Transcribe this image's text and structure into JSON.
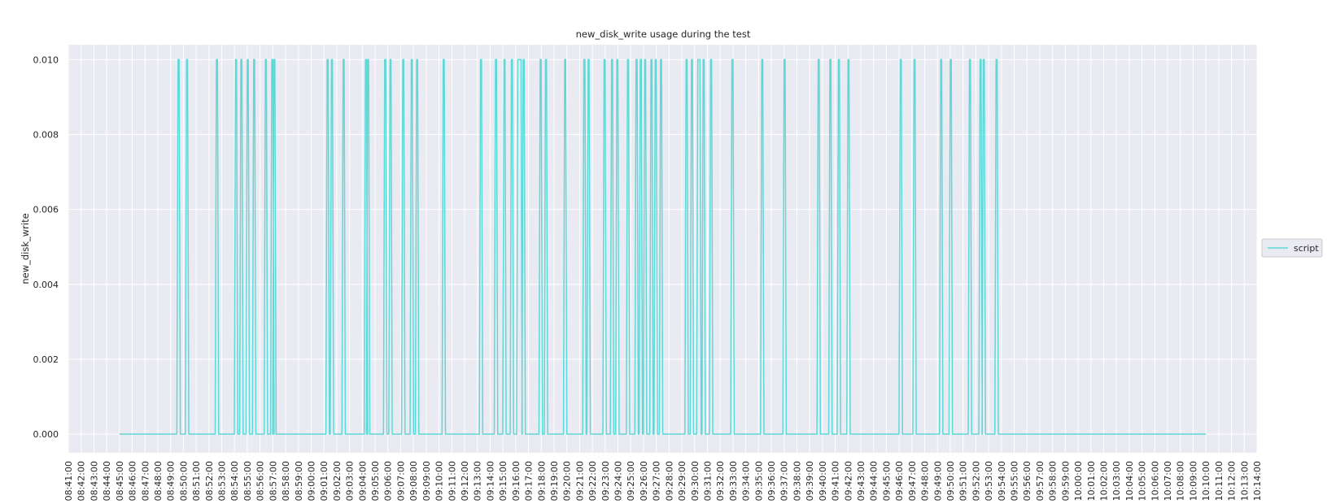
{
  "chart_data": {
    "type": "line",
    "title": "new_disk_write usage during the test",
    "xlabel": "",
    "ylabel": "new_disk_write",
    "xlim": [
      "08:41:00",
      "10:14:00"
    ],
    "ylim": [
      -0.0005,
      0.0104
    ],
    "yticks": [
      "0.000",
      "0.002",
      "0.004",
      "0.006",
      "0.008",
      "0.010"
    ],
    "xticks": [
      "08:41:00",
      "08:42:00",
      "08:43:00",
      "08:44:00",
      "08:45:00",
      "08:46:00",
      "08:47:00",
      "08:48:00",
      "08:49:00",
      "08:50:00",
      "08:51:00",
      "08:52:00",
      "08:53:00",
      "08:54:00",
      "08:55:00",
      "08:56:00",
      "08:57:00",
      "08:58:00",
      "08:59:00",
      "09:00:00",
      "09:01:00",
      "09:02:00",
      "09:03:00",
      "09:04:00",
      "09:05:00",
      "09:06:00",
      "09:07:00",
      "09:08:00",
      "09:09:00",
      "09:10:00",
      "09:11:00",
      "09:12:00",
      "09:13:00",
      "09:14:00",
      "09:15:00",
      "09:16:00",
      "09:17:00",
      "09:18:00",
      "09:19:00",
      "09:20:00",
      "09:21:00",
      "09:22:00",
      "09:23:00",
      "09:24:00",
      "09:25:00",
      "09:26:00",
      "09:27:00",
      "09:28:00",
      "09:29:00",
      "09:30:00",
      "09:31:00",
      "09:32:00",
      "09:33:00",
      "09:34:00",
      "09:35:00",
      "09:36:00",
      "09:37:00",
      "09:38:00",
      "09:39:00",
      "09:40:00",
      "09:41:00",
      "09:42:00",
      "09:43:00",
      "09:44:00",
      "09:45:00",
      "09:46:00",
      "09:47:00",
      "09:48:00",
      "09:49:00",
      "09:50:00",
      "09:51:00",
      "09:52:00",
      "09:53:00",
      "09:54:00",
      "09:55:00",
      "09:56:00",
      "09:57:00",
      "09:58:00",
      "09:59:00",
      "10:00:00",
      "10:01:00",
      "10:02:00",
      "10:03:00",
      "10:04:00",
      "10:05:00",
      "10:06:00",
      "10:07:00",
      "10:08:00",
      "10:09:00",
      "10:10:00",
      "10:11:00",
      "10:12:00",
      "10:13:00",
      "10:14:00"
    ],
    "grid": true,
    "legend_position": "right",
    "background_color": "#eaeaf2",
    "grid_color": "#ffffff",
    "series": [
      {
        "name": "script",
        "color": "#5fd8d8",
        "start": "08:45:00",
        "end": "10:10:00",
        "baseline": 0.0,
        "spike_value": 0.01,
        "spikes": [
          {
            "start": "08:49:35",
            "end": "08:49:40"
          },
          {
            "start": "08:50:15",
            "end": "08:50:15"
          },
          {
            "start": "08:52:35",
            "end": "08:52:40"
          },
          {
            "start": "08:54:05",
            "end": "08:54:05"
          },
          {
            "start": "08:54:30",
            "end": "08:54:30"
          },
          {
            "start": "08:55:00",
            "end": "08:55:00"
          },
          {
            "start": "08:55:30",
            "end": "08:55:30"
          },
          {
            "start": "08:56:25",
            "end": "08:56:25"
          },
          {
            "start": "08:56:55",
            "end": "08:57:00"
          },
          {
            "start": "08:57:05",
            "end": "08:57:05"
          },
          {
            "start": "09:01:15",
            "end": "09:01:15"
          },
          {
            "start": "09:01:35",
            "end": "09:01:35"
          },
          {
            "start": "09:02:30",
            "end": "09:02:30"
          },
          {
            "start": "09:04:15",
            "end": "09:04:15"
          },
          {
            "start": "09:04:25",
            "end": "09:04:25"
          },
          {
            "start": "09:05:45",
            "end": "09:05:50"
          },
          {
            "start": "09:06:10",
            "end": "09:06:10"
          },
          {
            "start": "09:07:10",
            "end": "09:07:10"
          },
          {
            "start": "09:07:50",
            "end": "09:07:55"
          },
          {
            "start": "09:08:15",
            "end": "09:08:15"
          },
          {
            "start": "09:10:20",
            "end": "09:10:20"
          },
          {
            "start": "09:13:15",
            "end": "09:13:15"
          },
          {
            "start": "09:14:25",
            "end": "09:14:30"
          },
          {
            "start": "09:15:05",
            "end": "09:15:05"
          },
          {
            "start": "09:15:40",
            "end": "09:15:40"
          },
          {
            "start": "09:16:10",
            "end": "09:16:25"
          },
          {
            "start": "09:16:35",
            "end": "09:16:35"
          },
          {
            "start": "09:17:55",
            "end": "09:17:55"
          },
          {
            "start": "09:18:20",
            "end": "09:18:20"
          },
          {
            "start": "09:19:50",
            "end": "09:19:50"
          },
          {
            "start": "09:21:20",
            "end": "09:21:25"
          },
          {
            "start": "09:21:40",
            "end": "09:21:40"
          },
          {
            "start": "09:22:55",
            "end": "09:22:55"
          },
          {
            "start": "09:23:30",
            "end": "09:23:30"
          },
          {
            "start": "09:23:55",
            "end": "09:23:55"
          },
          {
            "start": "09:24:45",
            "end": "09:24:45"
          },
          {
            "start": "09:25:25",
            "end": "09:25:30"
          },
          {
            "start": "09:25:45",
            "end": "09:25:45"
          },
          {
            "start": "09:26:05",
            "end": "09:26:05"
          },
          {
            "start": "09:26:35",
            "end": "09:26:35"
          },
          {
            "start": "09:26:55",
            "end": "09:26:55"
          },
          {
            "start": "09:27:20",
            "end": "09:27:20"
          },
          {
            "start": "09:29:20",
            "end": "09:29:20"
          },
          {
            "start": "09:29:45",
            "end": "09:29:45"
          },
          {
            "start": "09:30:15",
            "end": "09:30:25"
          },
          {
            "start": "09:30:40",
            "end": "09:30:40"
          },
          {
            "start": "09:31:15",
            "end": "09:31:15"
          },
          {
            "start": "09:32:55",
            "end": "09:33:00"
          },
          {
            "start": "09:35:15",
            "end": "09:35:15"
          },
          {
            "start": "09:37:00",
            "end": "09:37:00"
          },
          {
            "start": "09:39:40",
            "end": "09:39:40"
          },
          {
            "start": "09:40:35",
            "end": "09:40:35"
          },
          {
            "start": "09:41:15",
            "end": "09:41:15"
          },
          {
            "start": "09:42:00",
            "end": "09:42:00"
          },
          {
            "start": "09:46:05",
            "end": "09:46:10"
          },
          {
            "start": "09:47:10",
            "end": "09:47:10"
          },
          {
            "start": "09:49:15",
            "end": "09:49:15"
          },
          {
            "start": "09:50:00",
            "end": "09:50:00"
          },
          {
            "start": "09:51:30",
            "end": "09:51:30"
          },
          {
            "start": "09:52:20",
            "end": "09:52:20"
          },
          {
            "start": "09:52:35",
            "end": "09:52:35"
          },
          {
            "start": "09:53:35",
            "end": "09:53:40"
          }
        ]
      }
    ]
  }
}
